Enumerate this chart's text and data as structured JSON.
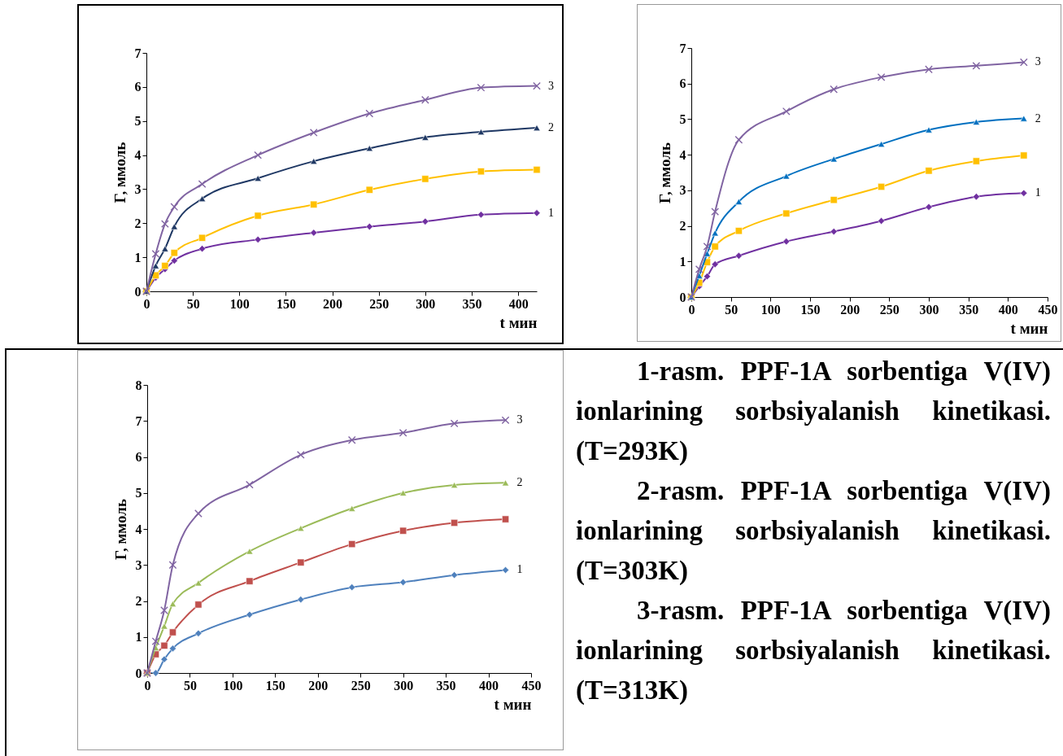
{
  "chart_data": [
    {
      "type": "line",
      "xlabel": "t мин",
      "ylabel": "Г, ммоль",
      "xlim": [
        0,
        420
      ],
      "xticks": [
        0,
        50,
        100,
        150,
        200,
        250,
        300,
        350,
        400
      ],
      "ylim": [
        0,
        7
      ],
      "yticks": [
        0,
        1,
        2,
        3,
        4,
        5,
        6,
        7
      ],
      "grid": false,
      "line_style": "solid",
      "x": [
        0,
        10,
        20,
        30,
        60,
        120,
        180,
        240,
        300,
        360,
        420
      ],
      "series": [
        {
          "name": "1",
          "color": "#7030a0",
          "marker": "diamond",
          "values": [
            0,
            0.4,
            0.65,
            0.9,
            1.25,
            1.52,
            1.72,
            1.9,
            2.05,
            2.25,
            2.3
          ]
        },
        {
          "color": "#ffc000",
          "marker": "square",
          "values": [
            0,
            0.47,
            0.75,
            1.13,
            1.57,
            2.22,
            2.55,
            2.98,
            3.3,
            3.52,
            3.57
          ]
        },
        {
          "name": "2",
          "color": "#1f3864",
          "marker": "triangle",
          "values": [
            0,
            0.75,
            1.25,
            1.9,
            2.72,
            3.32,
            3.82,
            4.2,
            4.52,
            4.68,
            4.8
          ]
        },
        {
          "name": "3",
          "color": "#8064a2",
          "marker": "cross",
          "values": [
            0,
            1.1,
            1.98,
            2.48,
            3.15,
            4.0,
            4.66,
            5.22,
            5.62,
            5.98,
            6.03
          ]
        }
      ]
    },
    {
      "type": "line",
      "xlabel": "t мин",
      "ylabel": "Г, ммоль",
      "xlim": [
        0,
        450
      ],
      "xticks": [
        0,
        50,
        100,
        150,
        200,
        250,
        300,
        350,
        400,
        450
      ],
      "ylim": [
        0,
        7
      ],
      "yticks": [
        0,
        1,
        2,
        3,
        4,
        5,
        6,
        7
      ],
      "grid": false,
      "line_style": "solid",
      "x": [
        0,
        10,
        20,
        30,
        60,
        120,
        180,
        240,
        300,
        360,
        420
      ],
      "series": [
        {
          "name": "1",
          "color": "#7030a0",
          "marker": "diamond",
          "values": [
            0,
            0.3,
            0.58,
            0.92,
            1.16,
            1.56,
            1.84,
            2.14,
            2.53,
            2.82,
            2.92
          ]
        },
        {
          "color": "#ffc000",
          "marker": "square",
          "values": [
            0,
            0.4,
            0.98,
            1.42,
            1.86,
            2.35,
            2.73,
            3.1,
            3.55,
            3.82,
            3.98
          ]
        },
        {
          "name": "2",
          "color": "#0070c0",
          "marker": "triangle",
          "values": [
            0,
            0.6,
            1.22,
            1.8,
            2.68,
            3.4,
            3.88,
            4.3,
            4.7,
            4.92,
            5.02
          ]
        },
        {
          "name": "3",
          "color": "#8064a2",
          "marker": "cross",
          "values": [
            0,
            0.78,
            1.42,
            2.4,
            4.42,
            5.22,
            5.84,
            6.18,
            6.4,
            6.5,
            6.6
          ]
        }
      ]
    },
    {
      "type": "line",
      "xlabel": "t мин",
      "ylabel": "Г, ммоль",
      "xlim": [
        0,
        450
      ],
      "xticks": [
        0,
        50,
        100,
        150,
        200,
        250,
        300,
        350,
        400,
        450
      ],
      "ylim": [
        0,
        8
      ],
      "yticks": [
        0,
        1,
        2,
        3,
        4,
        5,
        6,
        7,
        8
      ],
      "grid": false,
      "line_style": "solid",
      "x": [
        0,
        10,
        20,
        30,
        60,
        120,
        180,
        240,
        300,
        360,
        420
      ],
      "series": [
        {
          "name": "1",
          "color": "#4f81bd",
          "marker": "diamond",
          "values": [
            0,
            0,
            0.38,
            0.68,
            1.1,
            1.62,
            2.04,
            2.38,
            2.52,
            2.72,
            2.86
          ]
        },
        {
          "color": "#c0504d",
          "marker": "square",
          "values": [
            0,
            0.52,
            0.76,
            1.13,
            1.9,
            2.55,
            3.07,
            3.58,
            3.95,
            4.17,
            4.27
          ]
        },
        {
          "name": "2",
          "color": "#9bbb59",
          "marker": "triangle",
          "values": [
            0,
            0.7,
            1.3,
            1.92,
            2.5,
            3.38,
            4.02,
            4.57,
            5.0,
            5.22,
            5.28
          ]
        },
        {
          "name": "3",
          "color": "#8064a2",
          "marker": "cross",
          "values": [
            0,
            0.88,
            1.74,
            3.0,
            4.43,
            5.23,
            6.06,
            6.47,
            6.67,
            6.93,
            7.02
          ]
        }
      ]
    },
    {
      "type": "other",
      "annotations": [
        "1-rasm. PPF-1A sorbentiga V(IV) ionlarining sorbsiyalanish kinetikasi. (T=293K)",
        "2-rasm. PPF-1A sorbentiga V(IV) ionlarining sorbsiyalanish kinetikasi. (T=303K)",
        "3-rasm. PPF-1A sorbentiga V(IV) ionlarining sorbsiyalanish kinetikasi. (T=313K)"
      ]
    }
  ]
}
